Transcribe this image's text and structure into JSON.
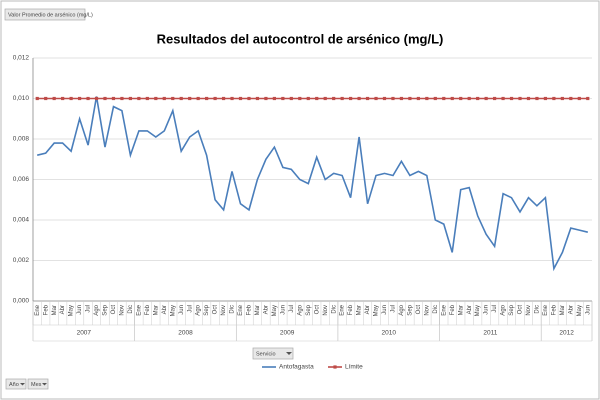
{
  "chart_data": {
    "type": "line",
    "title": "Resultados del autocontrol de arsénico (mg/L)",
    "value_field": "Valor Promedio de arsénico (mg/L)",
    "filters": [
      "Año",
      "Mes"
    ],
    "legend_field": "Servicio",
    "categories": [
      "Ene",
      "Feb",
      "Mar",
      "Abr",
      "May",
      "Jun",
      "Jul",
      "Ago",
      "Sep",
      "Oct",
      "Nov",
      "Dic",
      "Ene",
      "Feb",
      "Mar",
      "Abr",
      "May",
      "Jun",
      "Jul",
      "Ago",
      "Sep",
      "Oct",
      "Nov",
      "Dic",
      "Ene",
      "Feb",
      "Mar",
      "Abr",
      "May",
      "Jun",
      "Jul",
      "Ago",
      "Sep",
      "Oct",
      "Nov",
      "Dic",
      "Ene",
      "Feb",
      "Mar",
      "Abr",
      "May",
      "Jun",
      "Jul",
      "Ago",
      "Sep",
      "Oct",
      "Nov",
      "Dic",
      "Ene",
      "Feb",
      "Mar",
      "Abr",
      "May",
      "Jun",
      "Jul",
      "Ago",
      "Sep",
      "Oct",
      "Nov",
      "Dic",
      "Ene",
      "Feb",
      "Mar",
      "Abr",
      "May",
      "Jun"
    ],
    "category_groups": [
      "2007",
      "2008",
      "2009",
      "2010",
      "2011",
      "2012"
    ],
    "series": [
      {
        "name": "Antofagasta",
        "color": "#4a7ebb",
        "marker": false,
        "values": [
          0.0072,
          0.0073,
          0.0078,
          0.0078,
          0.0074,
          0.009,
          0.0077,
          0.0101,
          0.0076,
          0.0096,
          0.0094,
          0.0072,
          0.0084,
          0.0084,
          0.0081,
          0.0084,
          0.0094,
          0.0074,
          0.0081,
          0.0084,
          0.0072,
          0.005,
          0.0045,
          0.0064,
          0.0048,
          0.0045,
          0.006,
          0.007,
          0.0076,
          0.0066,
          0.0065,
          0.006,
          0.0058,
          0.0071,
          0.006,
          0.0063,
          0.0062,
          0.0051,
          0.0081,
          0.0048,
          0.0062,
          0.0063,
          0.0062,
          0.0069,
          0.0062,
          0.0064,
          0.0062,
          0.004,
          0.0038,
          0.0024,
          0.0055,
          0.0056,
          0.0042,
          0.0033,
          0.0027,
          0.0053,
          0.0051,
          0.0044,
          0.0051,
          0.0047,
          0.0051,
          0.0016,
          0.0024,
          0.0036,
          0.0035,
          0.0034
        ]
      },
      {
        "name": "Límite",
        "color": "#be4b48",
        "marker": true,
        "values": [
          0.01,
          0.01,
          0.01,
          0.01,
          0.01,
          0.01,
          0.01,
          0.01,
          0.01,
          0.01,
          0.01,
          0.01,
          0.01,
          0.01,
          0.01,
          0.01,
          0.01,
          0.01,
          0.01,
          0.01,
          0.01,
          0.01,
          0.01,
          0.01,
          0.01,
          0.01,
          0.01,
          0.01,
          0.01,
          0.01,
          0.01,
          0.01,
          0.01,
          0.01,
          0.01,
          0.01,
          0.01,
          0.01,
          0.01,
          0.01,
          0.01,
          0.01,
          0.01,
          0.01,
          0.01,
          0.01,
          0.01,
          0.01,
          0.01,
          0.01,
          0.01,
          0.01,
          0.01,
          0.01,
          0.01,
          0.01,
          0.01,
          0.01,
          0.01,
          0.01,
          0.01,
          0.01,
          0.01,
          0.01,
          0.01,
          0.01
        ]
      }
    ],
    "ylim": [
      0,
      0.012
    ],
    "yticks": [
      {
        "value": 0,
        "label": "0,000"
      },
      {
        "value": 0.002,
        "label": "0,002"
      },
      {
        "value": 0.004,
        "label": "0,004"
      },
      {
        "value": 0.006,
        "label": "0,006"
      },
      {
        "value": 0.008,
        "label": "0,008"
      },
      {
        "value": 0.01,
        "label": "0,010"
      },
      {
        "value": 0.012,
        "label": "0,012"
      }
    ],
    "grid": true,
    "legend": "bottom"
  }
}
